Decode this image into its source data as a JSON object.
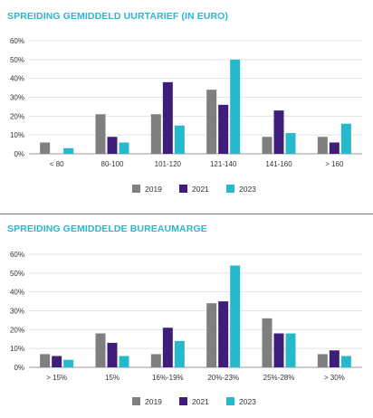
{
  "colors": {
    "s2019": "#7f7f7f",
    "s2021": "#3f1d7a",
    "s2023": "#26b9cc",
    "title": "#2ab7cf",
    "grid": "#e3e3e3"
  },
  "chart_data": [
    {
      "type": "bar",
      "title": "SPREIDING GEMIDDELD UURTARIEF (IN EURO)",
      "categories": [
        "< 80",
        "80-100",
        "101-120",
        "121-140",
        "141-160",
        "> 160"
      ],
      "yticks": [
        "0%",
        "10%",
        "20%",
        "30%",
        "40%",
        "50%",
        "60%"
      ],
      "ylim": [
        0,
        60
      ],
      "grid": true,
      "legend_position": "bottom-center",
      "series": [
        {
          "name": "2019",
          "values": [
            6,
            21,
            21,
            34,
            9,
            9
          ]
        },
        {
          "name": "2021",
          "values": [
            0,
            9,
            38,
            26,
            23,
            6
          ]
        },
        {
          "name": "2023",
          "values": [
            3,
            6,
            15,
            50,
            11,
            16
          ]
        }
      ]
    },
    {
      "type": "bar",
      "title": "SPREIDING GEMIDDELDE BUREAUMARGE",
      "categories": [
        "> 15%",
        "15%",
        "16%-19%",
        "20%-23%",
        "25%-28%",
        "> 30%"
      ],
      "yticks": [
        "0%",
        "10%",
        "20%",
        "30%",
        "40%",
        "50%",
        "60%"
      ],
      "ylim": [
        0,
        60
      ],
      "grid": true,
      "legend_position": "bottom-center",
      "series": [
        {
          "name": "2019",
          "values": [
            7,
            18,
            7,
            34,
            26,
            7
          ]
        },
        {
          "name": "2021",
          "values": [
            6,
            13,
            21,
            35,
            18,
            9
          ]
        },
        {
          "name": "2023",
          "values": [
            4,
            6,
            14,
            54,
            18,
            6
          ]
        }
      ]
    }
  ]
}
